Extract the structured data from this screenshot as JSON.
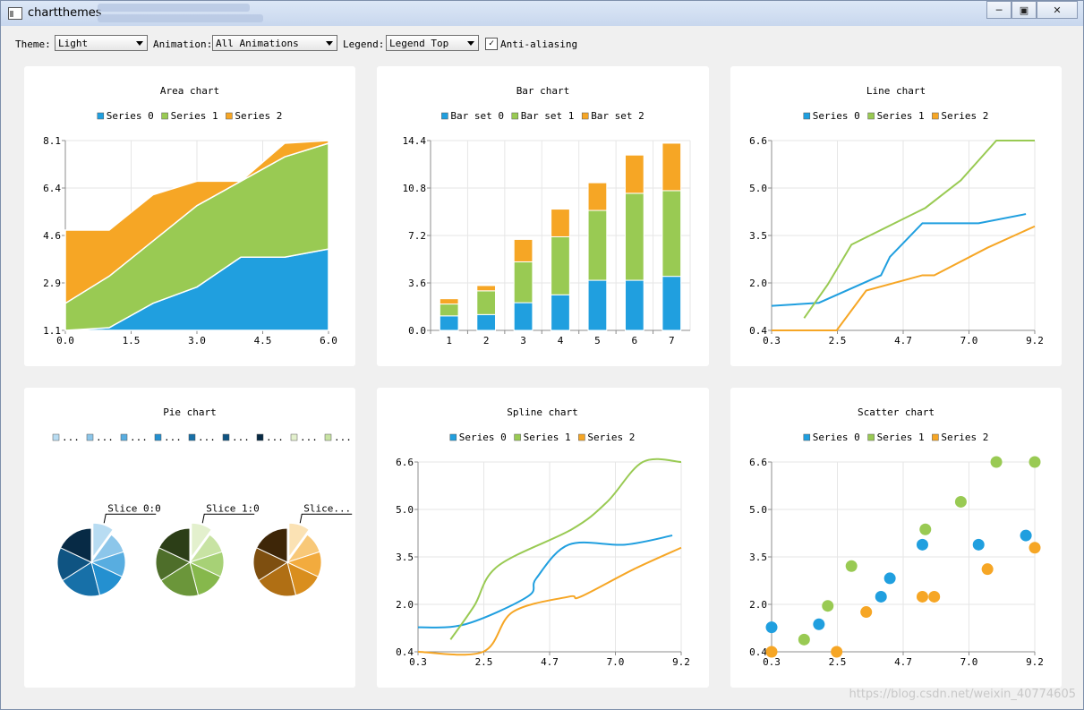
{
  "window": {
    "title": "chartthemes",
    "minimize_icon": "minimize-icon",
    "maximize_icon": "maximize-icon",
    "close_icon": "close-icon"
  },
  "toolbar": {
    "theme_label": "Theme:",
    "theme_value": "Light",
    "animation_label": "Animation:",
    "animation_value": "All Animations",
    "legend_label": "Legend:",
    "legend_value": "Legend Top",
    "antialias_label": "Anti-aliasing",
    "antialias_checked": true
  },
  "colors": {
    "s0": "#209fdf",
    "s1": "#99ca53",
    "s2": "#f6a625",
    "grid": "#e6e6e6",
    "axis": "#8c8c8c"
  },
  "watermark": "https://blog.csdn.net/weixin_40774605",
  "chart_data": [
    {
      "type": "area",
      "title": "Area chart",
      "legend": [
        "Series 0",
        "Series 1",
        "Series 2"
      ],
      "x_ticks": [
        "0.0",
        "1.5",
        "3.0",
        "4.5",
        "6.0"
      ],
      "y_ticks": [
        "1.1",
        "2.9",
        "4.6",
        "6.4",
        "8.1"
      ],
      "xlim": [
        0,
        6
      ],
      "ylim": [
        1.1,
        8.1
      ],
      "x": [
        0,
        1,
        2,
        3,
        4,
        5,
        6
      ],
      "boundaries": [
        [
          1.1,
          1.2,
          2.1,
          2.7,
          3.8,
          3.8,
          4.1
        ],
        [
          2.1,
          3.1,
          4.4,
          5.7,
          6.6,
          7.5,
          8.0
        ],
        [
          4.8,
          4.8,
          6.1,
          6.6,
          6.6,
          8.0,
          8.1
        ]
      ]
    },
    {
      "type": "bar",
      "title": "Bar chart",
      "legend": [
        "Bar set 0",
        "Bar set 1",
        "Bar set 2"
      ],
      "categories": [
        "1",
        "2",
        "3",
        "4",
        "5",
        "6",
        "7"
      ],
      "y_ticks": [
        "0.0",
        "3.6",
        "7.2",
        "10.8",
        "14.4"
      ],
      "ylim": [
        0,
        14.4
      ],
      "stacked": true,
      "series": [
        {
          "name": "Bar set 0",
          "values": [
            1.1,
            1.2,
            2.1,
            2.7,
            3.8,
            3.8,
            4.1
          ]
        },
        {
          "name": "Bar set 1",
          "values": [
            0.9,
            1.8,
            3.1,
            4.4,
            5.3,
            6.6,
            6.5
          ]
        },
        {
          "name": "Bar set 2",
          "values": [
            0.4,
            0.4,
            1.7,
            2.1,
            2.1,
            2.9,
            3.6
          ]
        }
      ]
    },
    {
      "type": "line",
      "title": "Line chart",
      "legend": [
        "Series 0",
        "Series 1",
        "Series 2"
      ],
      "x_ticks": [
        "0.3",
        "2.5",
        "4.7",
        "7.0",
        "9.2"
      ],
      "y_ticks": [
        "0.4",
        "2.0",
        "3.5",
        "5.0",
        "6.6"
      ],
      "xlim": [
        0.3,
        9.2
      ],
      "ylim": [
        0.4,
        6.6
      ],
      "series": [
        {
          "name": "Series 0",
          "points": [
            [
              0.3,
              1.2
            ],
            [
              1.9,
              1.3
            ],
            [
              4.0,
              2.2
            ],
            [
              4.3,
              2.8
            ],
            [
              5.4,
              3.9
            ],
            [
              7.3,
              3.9
            ],
            [
              8.9,
              4.2
            ]
          ]
        },
        {
          "name": "Series 1",
          "points": [
            [
              1.4,
              0.8
            ],
            [
              2.2,
              1.9
            ],
            [
              3.0,
              3.2
            ],
            [
              5.5,
              4.4
            ],
            [
              6.7,
              5.3
            ],
            [
              7.9,
              6.6
            ],
            [
              9.2,
              6.6
            ]
          ]
        },
        {
          "name": "Series 2",
          "points": [
            [
              0.3,
              0.4
            ],
            [
              2.5,
              0.4
            ],
            [
              3.5,
              1.7
            ],
            [
              5.4,
              2.2
            ],
            [
              5.8,
              2.2
            ],
            [
              7.6,
              3.1
            ],
            [
              9.2,
              3.8
            ]
          ]
        }
      ]
    },
    {
      "type": "pie",
      "title": "Pie chart",
      "legend_items": [
        "...",
        "...",
        "...",
        "...",
        "...",
        "...",
        "...",
        "...",
        "..."
      ],
      "slice_labels": [
        "Slice 0:0",
        "Slice 1:0",
        "Slice..."
      ],
      "pies": [
        {
          "values": [
            1.0,
            1.0,
            1.2,
            1.4,
            2.0,
            1.6,
            1.8
          ],
          "colors": [
            "#b8dcf2",
            "#8cc6ea",
            "#58ade0",
            "#2490d0",
            "#1770a8",
            "#0f5482",
            "#072a45"
          ]
        },
        {
          "values": [
            1.0,
            1.0,
            1.2,
            1.4,
            2.0,
            1.6,
            1.8
          ],
          "colors": [
            "#e3f0cd",
            "#c8e3a3",
            "#a7d176",
            "#86b84c",
            "#6b963a",
            "#4e6e2a",
            "#2c3e17"
          ]
        },
        {
          "values": [
            1.0,
            1.0,
            1.2,
            1.4,
            2.0,
            1.6,
            1.8
          ],
          "colors": [
            "#fbe2b4",
            "#f8c878",
            "#f2ab3e",
            "#d98e1e",
            "#b06f14",
            "#7e4f10",
            "#3e2608"
          ]
        }
      ]
    },
    {
      "type": "line",
      "smooth": true,
      "title": "Spline chart",
      "legend": [
        "Series 0",
        "Series 1",
        "Series 2"
      ],
      "x_ticks": [
        "0.3",
        "2.5",
        "4.7",
        "7.0",
        "9.2"
      ],
      "y_ticks": [
        "0.4",
        "2.0",
        "3.5",
        "5.0",
        "6.6"
      ],
      "xlim": [
        0.3,
        9.2
      ],
      "ylim": [
        0.4,
        6.6
      ],
      "series": [
        {
          "name": "Series 0",
          "points": [
            [
              0.3,
              1.2
            ],
            [
              1.9,
              1.3
            ],
            [
              4.0,
              2.2
            ],
            [
              4.3,
              2.8
            ],
            [
              5.4,
              3.9
            ],
            [
              7.3,
              3.9
            ],
            [
              8.9,
              4.2
            ]
          ]
        },
        {
          "name": "Series 1",
          "points": [
            [
              1.4,
              0.8
            ],
            [
              2.2,
              1.9
            ],
            [
              3.0,
              3.2
            ],
            [
              5.5,
              4.4
            ],
            [
              6.7,
              5.3
            ],
            [
              7.9,
              6.6
            ],
            [
              9.2,
              6.6
            ]
          ]
        },
        {
          "name": "Series 2",
          "points": [
            [
              0.3,
              0.4
            ],
            [
              2.5,
              0.4
            ],
            [
              3.5,
              1.7
            ],
            [
              5.4,
              2.2
            ],
            [
              5.8,
              2.2
            ],
            [
              7.6,
              3.1
            ],
            [
              9.2,
              3.8
            ]
          ]
        }
      ]
    },
    {
      "type": "scatter",
      "title": "Scatter chart",
      "legend": [
        "Series 0",
        "Series 1",
        "Series 2"
      ],
      "x_ticks": [
        "0.3",
        "2.5",
        "4.7",
        "7.0",
        "9.2"
      ],
      "y_ticks": [
        "0.4",
        "2.0",
        "3.5",
        "5.0",
        "6.6"
      ],
      "xlim": [
        0.3,
        9.2
      ],
      "ylim": [
        0.4,
        6.6
      ],
      "series": [
        {
          "name": "Series 0",
          "points": [
            [
              0.3,
              1.2
            ],
            [
              1.9,
              1.3
            ],
            [
              4.0,
              2.2
            ],
            [
              4.3,
              2.8
            ],
            [
              5.4,
              3.9
            ],
            [
              7.3,
              3.9
            ],
            [
              8.9,
              4.2
            ]
          ]
        },
        {
          "name": "Series 1",
          "points": [
            [
              1.4,
              0.8
            ],
            [
              2.2,
              1.9
            ],
            [
              3.0,
              3.2
            ],
            [
              5.5,
              4.4
            ],
            [
              6.7,
              5.3
            ],
            [
              7.9,
              6.6
            ],
            [
              9.2,
              6.6
            ]
          ]
        },
        {
          "name": "Series 2",
          "points": [
            [
              0.3,
              0.4
            ],
            [
              2.5,
              0.4
            ],
            [
              3.5,
              1.7
            ],
            [
              5.4,
              2.2
            ],
            [
              5.8,
              2.2
            ],
            [
              7.6,
              3.1
            ],
            [
              9.2,
              3.8
            ]
          ]
        }
      ]
    }
  ]
}
